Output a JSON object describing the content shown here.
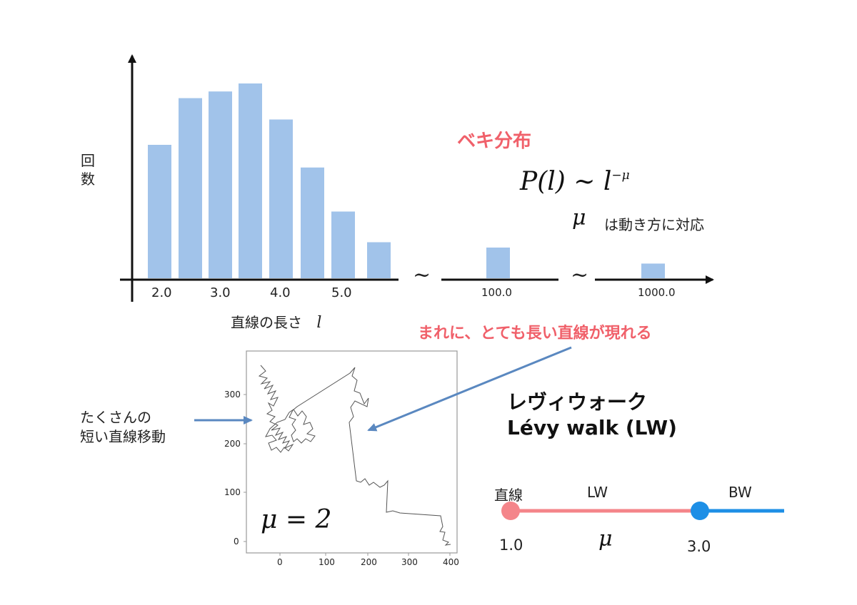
{
  "histogram": {
    "ylabel_chars": [
      "回",
      "数"
    ],
    "xlabel": "直線の長さ",
    "xlabel_symbol": "l",
    "tick_labels": [
      "2.0",
      "3.0",
      "4.0",
      "5.0",
      "100.0",
      "1000.0"
    ],
    "break_symbol": "~"
  },
  "chart_data": {
    "type": "bar",
    "categories": [
      "2.0",
      "2.5",
      "3.0",
      "3.5",
      "4.0",
      "4.5",
      "5.0",
      "5.5",
      "100.0",
      "1000.0"
    ],
    "values": [
      100,
      135,
      140,
      146,
      119,
      83,
      50,
      27,
      23,
      11
    ],
    "ylabel": "回数",
    "xlabel": "直線の長さ l",
    "color": "#a1c3ea"
  },
  "power_law": {
    "title": "ベキ分布",
    "formula": "P(l) ~ l",
    "formula_exp": "−μ",
    "mu_symbol": "μ",
    "mu_note": "は動き方に対応"
  },
  "rare_long_label": "まれに、とても長い直線が現れる",
  "many_short_label_lines": [
    "たくさんの",
    "短い直線移動"
  ],
  "trajectory_plot": {
    "x_ticks": [
      "0",
      "100",
      "200",
      "300",
      "400"
    ],
    "y_ticks": [
      "0",
      "100",
      "200",
      "300"
    ],
    "annotation": "μ = 2"
  },
  "levy_walk": {
    "title_jp": "レヴィウォーク",
    "title_en": "Lévy walk (LW)"
  },
  "mu_scale": {
    "left_label": "直線",
    "mid_label": "LW",
    "right_label": "BW",
    "left_value": "1.0",
    "right_value": "3.0",
    "axis_symbol": "μ",
    "colors": {
      "lw": "#f4858a",
      "bw": "#1e8fe6"
    }
  },
  "colors": {
    "bar": "#a1c3ea",
    "accent_red": "#f0606a",
    "arrow_blue": "#5a88c0"
  }
}
